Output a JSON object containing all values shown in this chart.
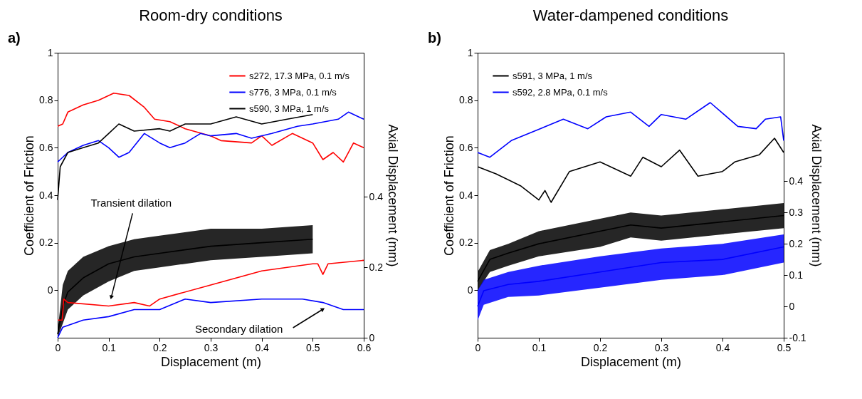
{
  "chart_data": [
    {
      "type": "line",
      "title": "Room-dry conditions",
      "xlabel": "Displacement (m)",
      "ylabel": "Coefficient of Friction",
      "y2label": "Axial Displacement (mm)",
      "xlim": [
        0,
        0.6
      ],
      "xticks": [
        0,
        0.1,
        0.2,
        0.3,
        0.4,
        0.5,
        0.6
      ],
      "ylim": [
        -0.2,
        1
      ],
      "yticks": [
        0,
        0.2,
        0.4,
        0.6,
        0.8,
        1
      ],
      "y2lim": [
        0,
        0.81
      ],
      "y2ticks": [
        0,
        0.2,
        0.4
      ],
      "grid": false,
      "legend": "top right",
      "marker": "none",
      "line_style": "solid",
      "annotations": [
        "a)",
        {
          "text": "Transient dilation",
          "x": 0.105,
          "y": -0.03
        },
        {
          "text": "Secondary dilation",
          "x": 0.52,
          "y": -0.08
        }
      ],
      "series": [
        {
          "name": "s272, 17.3 MPa, 0.1 m/s",
          "color": "#ff0000",
          "x": [
            0,
            0.01,
            0.02,
            0.05,
            0.08,
            0.11,
            0.14,
            0.17,
            0.19,
            0.22,
            0.25,
            0.3,
            0.32,
            0.38,
            0.4,
            0.42,
            0.46,
            0.5,
            0.52,
            0.54,
            0.56,
            0.58,
            0.6
          ],
          "values": [
            0.69,
            0.7,
            0.75,
            0.78,
            0.8,
            0.83,
            0.82,
            0.77,
            0.72,
            0.71,
            0.68,
            0.65,
            0.63,
            0.62,
            0.65,
            0.61,
            0.66,
            0.62,
            0.55,
            0.58,
            0.54,
            0.62,
            0.6
          ]
        },
        {
          "name": "s776, 3 MPa, 0.1 m/s",
          "color": "#0000ff",
          "x": [
            0,
            0.005,
            0.02,
            0.05,
            0.08,
            0.1,
            0.12,
            0.14,
            0.17,
            0.2,
            0.22,
            0.25,
            0.28,
            0.3,
            0.35,
            0.38,
            0.42,
            0.47,
            0.5,
            0.55,
            0.57,
            0.6
          ],
          "values": [
            0.54,
            0.55,
            0.58,
            0.61,
            0.63,
            0.6,
            0.56,
            0.58,
            0.66,
            0.62,
            0.6,
            0.62,
            0.66,
            0.65,
            0.66,
            0.64,
            0.66,
            0.69,
            0.7,
            0.72,
            0.75,
            0.72
          ]
        },
        {
          "name": "s590, 3 MPa, 1 m/s",
          "color": "#000000",
          "x": [
            0,
            0.005,
            0.02,
            0.05,
            0.08,
            0.1,
            0.12,
            0.15,
            0.2,
            0.22,
            0.25,
            0.3,
            0.35,
            0.4,
            0.45,
            0.5
          ],
          "values": [
            0.38,
            0.52,
            0.58,
            0.6,
            0.62,
            0.66,
            0.7,
            0.67,
            0.68,
            0.67,
            0.7,
            0.7,
            0.73,
            0.7,
            0.72,
            0.74
          ]
        },
        {
          "color": "#000000",
          "axis": "y2",
          "x": [
            0,
            0.01,
            0.02,
            0.05,
            0.1,
            0.15,
            0.2,
            0.3,
            0.4,
            0.5
          ],
          "values": [
            0.01,
            0.09,
            0.13,
            0.17,
            0.21,
            0.23,
            0.24,
            0.26,
            0.27,
            0.28
          ],
          "lower": [
            0,
            0.04,
            0.08,
            0.12,
            0.16,
            0.19,
            0.2,
            0.22,
            0.23,
            0.24
          ],
          "upper": [
            0.02,
            0.15,
            0.19,
            0.23,
            0.26,
            0.28,
            0.29,
            0.31,
            0.31,
            0.32
          ]
        },
        {
          "color": "#ff0000",
          "axis": "y2",
          "x": [
            0,
            0.009,
            0.012,
            0.02,
            0.1,
            0.15,
            0.18,
            0.2,
            0.3,
            0.4,
            0.5,
            0.51,
            0.52,
            0.53,
            0.6
          ],
          "values": [
            0.05,
            0.05,
            0.11,
            0.1,
            0.09,
            0.1,
            0.09,
            0.11,
            0.15,
            0.19,
            0.21,
            0.21,
            0.18,
            0.21,
            0.22
          ]
        },
        {
          "color": "#0000ff",
          "axis": "y2",
          "x": [
            0,
            0.01,
            0.05,
            0.1,
            0.15,
            0.2,
            0.25,
            0.3,
            0.4,
            0.48,
            0.52,
            0.56,
            0.6
          ],
          "values": [
            0.0,
            0.03,
            0.05,
            0.06,
            0.08,
            0.08,
            0.11,
            0.1,
            0.11,
            0.11,
            0.1,
            0.08,
            0.08
          ]
        }
      ]
    },
    {
      "type": "line",
      "title": "Water-dampened conditions",
      "xlabel": "Displacement (m)",
      "ylabel": "Coefficient of Friction",
      "y2label": "Axial Displacement (mm)",
      "xlim": [
        0,
        0.5
      ],
      "xticks": [
        0,
        0.1,
        0.2,
        0.3,
        0.4,
        0.5
      ],
      "ylim": [
        -0.2,
        1
      ],
      "yticks": [
        0,
        0.2,
        0.4,
        0.6,
        0.8,
        1
      ],
      "y2lim": [
        -0.1,
        0.81
      ],
      "y2ticks": [
        -0.1,
        0,
        0.1,
        0.2,
        0.3,
        0.4
      ],
      "grid": false,
      "legend": "top left",
      "marker": "none",
      "line_style": "solid",
      "annotations": [
        "b)"
      ],
      "series": [
        {
          "name": "s591, 3 MPa, 1 m/s",
          "color": "#000000",
          "x": [
            0,
            0.03,
            0.07,
            0.1,
            0.11,
            0.12,
            0.15,
            0.2,
            0.25,
            0.27,
            0.3,
            0.33,
            0.36,
            0.4,
            0.42,
            0.46,
            0.485,
            0.5
          ],
          "values": [
            0.52,
            0.49,
            0.44,
            0.38,
            0.42,
            0.37,
            0.5,
            0.54,
            0.48,
            0.56,
            0.52,
            0.59,
            0.48,
            0.5,
            0.54,
            0.57,
            0.64,
            0.58
          ]
        },
        {
          "name": "s592, 2.8 MPa, 0.1 m/s",
          "color": "#0000ff",
          "x": [
            0,
            0.02,
            0.055,
            0.14,
            0.18,
            0.21,
            0.25,
            0.28,
            0.3,
            0.34,
            0.38,
            0.425,
            0.455,
            0.47,
            0.495,
            0.5
          ],
          "values": [
            0.58,
            0.56,
            0.63,
            0.72,
            0.68,
            0.73,
            0.75,
            0.69,
            0.74,
            0.72,
            0.79,
            0.69,
            0.68,
            0.72,
            0.73,
            0.63
          ]
        },
        {
          "color": "#000000",
          "axis": "y2",
          "x": [
            0,
            0.02,
            0.05,
            0.1,
            0.2,
            0.25,
            0.3,
            0.4,
            0.5
          ],
          "values": [
            0.08,
            0.15,
            0.17,
            0.2,
            0.24,
            0.26,
            0.25,
            0.27,
            0.29
          ],
          "lower": [
            0.05,
            0.11,
            0.13,
            0.16,
            0.19,
            0.22,
            0.21,
            0.23,
            0.25
          ],
          "upper": [
            0.11,
            0.18,
            0.2,
            0.24,
            0.28,
            0.3,
            0.29,
            0.31,
            0.33
          ]
        },
        {
          "color": "#0000ff",
          "axis": "y2",
          "x": [
            0,
            0.01,
            0.05,
            0.1,
            0.2,
            0.3,
            0.4,
            0.5
          ],
          "values": [
            0.0,
            0.05,
            0.07,
            0.08,
            0.11,
            0.14,
            0.15,
            0.19
          ],
          "lower": [
            -0.045,
            0.005,
            0.03,
            0.035,
            0.06,
            0.085,
            0.1,
            0.14
          ],
          "upper": [
            0.05,
            0.085,
            0.11,
            0.13,
            0.16,
            0.185,
            0.2,
            0.23
          ]
        }
      ]
    }
  ]
}
